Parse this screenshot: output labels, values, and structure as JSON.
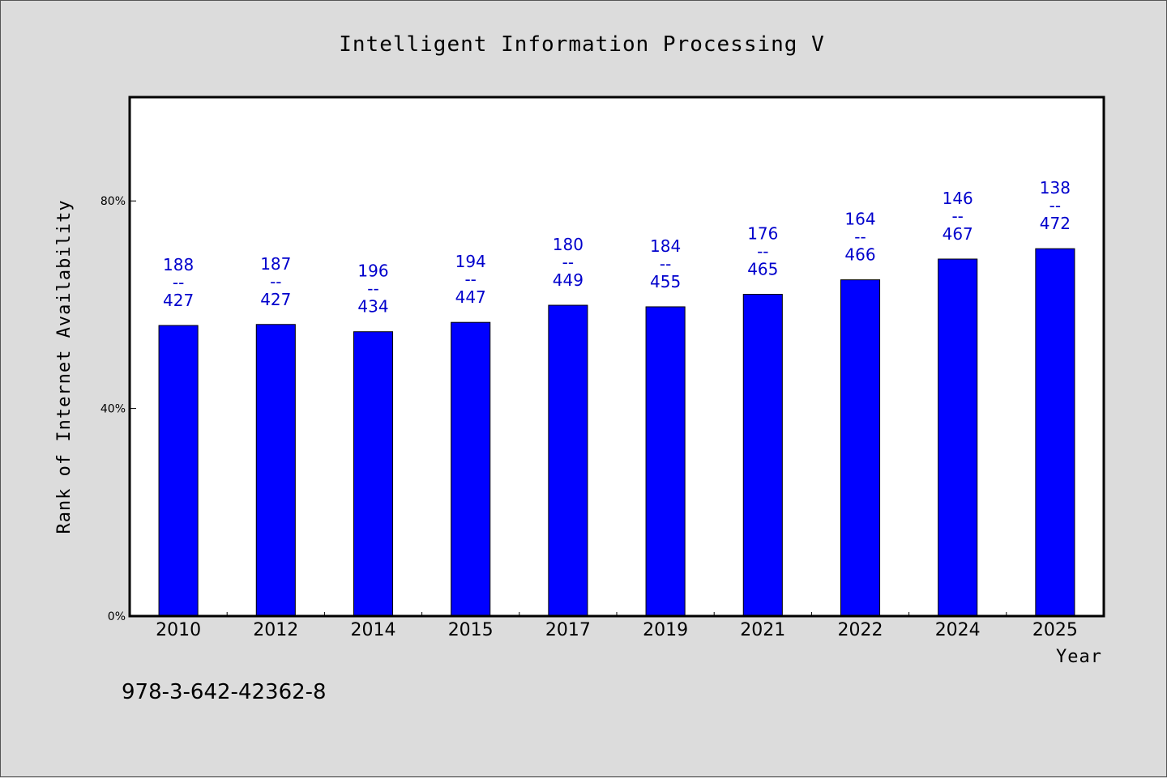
{
  "chart_data": {
    "type": "bar",
    "title": "Intelligent Information Processing V",
    "xlabel": "Year",
    "ylabel": "Rank of Internet Availability",
    "categories": [
      "2010",
      "2012",
      "2014",
      "2015",
      "2017",
      "2019",
      "2021",
      "2022",
      "2024",
      "2025"
    ],
    "values": [
      0.56,
      0.562,
      0.548,
      0.566,
      0.599,
      0.596,
      0.62,
      0.648,
      0.688,
      0.708
    ],
    "data_labels": [
      {
        "rank": "188",
        "sep": "--",
        "total": "427"
      },
      {
        "rank": "187",
        "sep": "--",
        "total": "427"
      },
      {
        "rank": "196",
        "sep": "--",
        "total": "434"
      },
      {
        "rank": "194",
        "sep": "--",
        "total": "447"
      },
      {
        "rank": "180",
        "sep": "--",
        "total": "449"
      },
      {
        "rank": "184",
        "sep": "--",
        "total": "455"
      },
      {
        "rank": "176",
        "sep": "--",
        "total": "465"
      },
      {
        "rank": "164",
        "sep": "--",
        "total": "466"
      },
      {
        "rank": "146",
        "sep": "--",
        "total": "467"
      },
      {
        "rank": "138",
        "sep": "--",
        "total": "472"
      }
    ],
    "yticks": [
      {
        "value": 0,
        "label": "0%"
      },
      {
        "value": 0.4,
        "label": "40%"
      },
      {
        "value": 0.8,
        "label": "80%"
      }
    ],
    "ylim": [
      0,
      1.0
    ],
    "grid": false,
    "legend": "none",
    "bar_color": "#0000ff",
    "label_color": "#0000cc"
  },
  "footer_text": "978-3-642-42362-8"
}
